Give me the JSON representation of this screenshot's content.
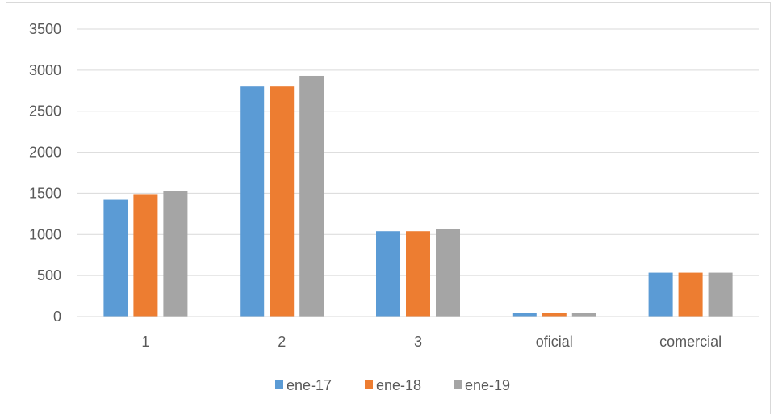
{
  "chart_data": {
    "type": "bar",
    "title": "",
    "xlabel": "",
    "ylabel": "",
    "categories": [
      "1",
      "2",
      "3",
      "oficial",
      "comercial"
    ],
    "series": [
      {
        "name": "ene-17",
        "color": "#5b9bd5",
        "values": [
          1430,
          2800,
          1040,
          40,
          535
        ]
      },
      {
        "name": "ene-18",
        "color": "#ed7d31",
        "values": [
          1490,
          2800,
          1040,
          40,
          535
        ]
      },
      {
        "name": "ene-19",
        "color": "#a5a5a5",
        "values": [
          1530,
          2930,
          1065,
          40,
          535
        ]
      }
    ],
    "ylim": [
      0,
      3500
    ],
    "yticks": [
      "0",
      "500",
      "1000",
      "1500",
      "2000",
      "2500",
      "3000",
      "3500"
    ],
    "grid": true,
    "legend_position": "bottom"
  }
}
